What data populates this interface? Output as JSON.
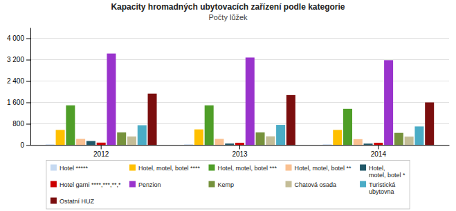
{
  "chart_data": {
    "type": "bar",
    "title": "Kapacity hromadných ubytovacích zařízení podle kategorie",
    "subtitle": "Počty lůžek",
    "categories": [
      "2012",
      "2013",
      "2014"
    ],
    "series": [
      {
        "name": "Hotel *****",
        "color": "#c5d9f1",
        "values": [
          30,
          30,
          30
        ]
      },
      {
        "name": "Hotel, motel, botel ****",
        "color": "#ffc000",
        "values": [
          570,
          590,
          570
        ]
      },
      {
        "name": "Hotel, motel, botel ***",
        "color": "#4f9e28",
        "values": [
          1490,
          1490,
          1360
        ]
      },
      {
        "name": "Hotel, motel, botel **",
        "color": "#fac090",
        "values": [
          235,
          235,
          225
        ]
      },
      {
        "name": "Hotel,\nmotel, botel *",
        "color": "#215868",
        "values": [
          155,
          60,
          58
        ]
      },
      {
        "name": "Hotel garni ****,***,**,*",
        "color": "#cc0000",
        "values": [
          95,
          90,
          90
        ]
      },
      {
        "name": "Penzion",
        "color": "#9933cc",
        "values": [
          3430,
          3280,
          3180
        ]
      },
      {
        "name": "Kemp",
        "color": "#76923c",
        "values": [
          475,
          475,
          460
        ]
      },
      {
        "name": "Chatová osada",
        "color": "#c4bd97",
        "values": [
          325,
          330,
          320
        ]
      },
      {
        "name": "Turistická\nubytovna",
        "color": "#4bacc6",
        "values": [
          745,
          760,
          700
        ]
      },
      {
        "name": "Ostatní HUZ",
        "color": "#7b0e0e",
        "values": [
          1930,
          1875,
          1600
        ]
      }
    ],
    "ylim": [
      0,
      4401
    ],
    "yticks": [
      0,
      800,
      {
        "value": 1600,
        "label": "1 600"
      },
      {
        "value": 2400,
        "label": "2 400"
      },
      {
        "value": 3200,
        "label": "3 200"
      },
      {
        "value": 4000,
        "label": "4 000"
      }
    ],
    "grid": true,
    "legend": "bottom"
  }
}
